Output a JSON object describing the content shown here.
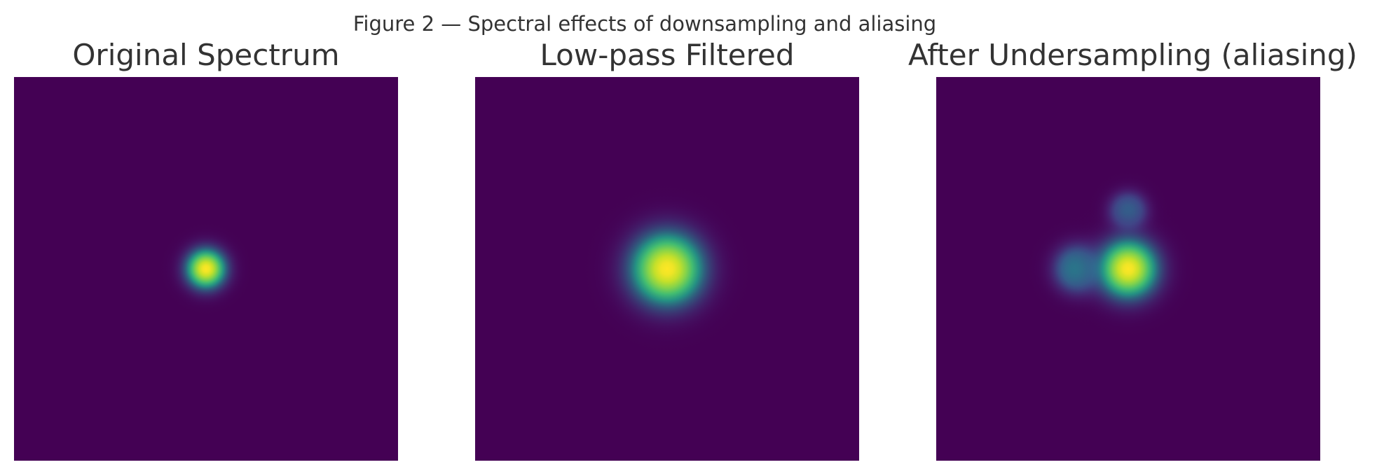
{
  "figure_title": "Figure 2 — Spectral effects of downsampling and aliasing",
  "colormap": {
    "name": "viridis",
    "background": "#440154",
    "stops": [
      "#440154",
      "#482878",
      "#3e4a89",
      "#31688e",
      "#26828e",
      "#1f9e89",
      "#35b779",
      "#6ece58",
      "#b5de2b",
      "#fde725"
    ]
  },
  "chart_data": [
    {
      "type": "heatmap",
      "title": "Original Spectrum",
      "xlabel": "",
      "ylabel": "",
      "grid": false,
      "legend": "none",
      "field": {
        "extent": [
          -1,
          1
        ],
        "peaks": [
          {
            "x": 0.0,
            "y": 0.0,
            "amplitude": 1.0,
            "sigma": 0.085
          }
        ]
      }
    },
    {
      "type": "heatmap",
      "title": "Low-pass Filtered",
      "xlabel": "",
      "ylabel": "",
      "grid": false,
      "legend": "none",
      "field": {
        "extent": [
          -1,
          1
        ],
        "peaks": [
          {
            "x": 0.0,
            "y": 0.0,
            "amplitude": 1.0,
            "sigma": 0.155
          }
        ]
      }
    },
    {
      "type": "heatmap",
      "title": "After Undersampling (aliasing)",
      "xlabel": "",
      "ylabel": "",
      "grid": false,
      "legend": "none",
      "field": {
        "extent": [
          -1,
          1
        ],
        "peaks": [
          {
            "x": 0.0,
            "y": 0.0,
            "amplitude": 1.0,
            "sigma": 0.125
          },
          {
            "x": -0.26,
            "y": 0.0,
            "amplitude": 0.45,
            "sigma": 0.1
          },
          {
            "x": 0.0,
            "y": -0.3,
            "amplitude": 0.32,
            "sigma": 0.08
          }
        ]
      }
    }
  ]
}
